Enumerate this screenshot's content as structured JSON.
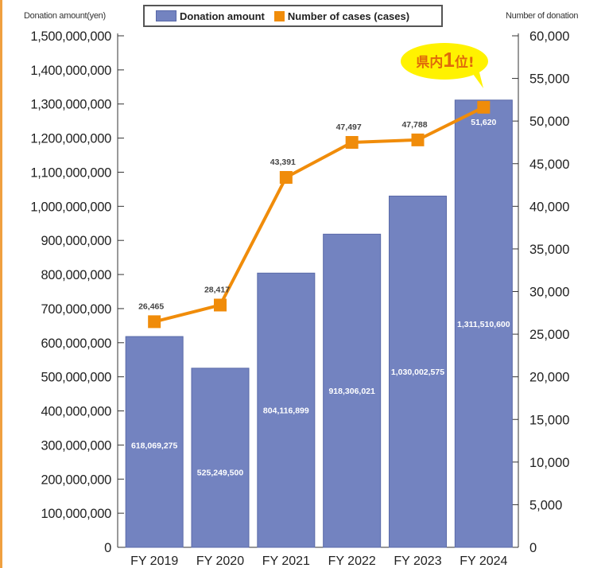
{
  "left_axis_title": "Donation amount(yen)",
  "right_axis_title": "Number of donation",
  "legend": {
    "bar_label": "Donation amount",
    "line_label": "Number of cases (cases)"
  },
  "callout": {
    "prefix": "県内",
    "number": "1",
    "suffix": "位!"
  },
  "colors": {
    "bar": "#7383c0",
    "bar_edge": "#5a6aa8",
    "line": "#f08c0a",
    "callout_bg": "#fff200",
    "callout_text": "#e06a0a"
  },
  "chart_data": {
    "type": "bar",
    "categories": [
      "FY 2019",
      "FY 2020",
      "FY 2021",
      "FY 2022",
      "FY 2023",
      "FY 2024"
    ],
    "series": [
      {
        "name": "Donation amount",
        "type": "bar",
        "axis": "left",
        "values": [
          618069275,
          525249500,
          804116899,
          918306021,
          1030002575,
          1311510600
        ],
        "labels": [
          "618,069,275",
          "525,249,500",
          "804,116,899",
          "918,306,021",
          "1,030,002,575",
          "1,311,510,600"
        ]
      },
      {
        "name": "Number of cases (cases)",
        "type": "line",
        "axis": "right",
        "values": [
          26465,
          28417,
          43391,
          47497,
          47788,
          51620
        ],
        "labels": [
          "26,465",
          "28,417",
          "43,391",
          "47,497",
          "47,788",
          "51,620"
        ]
      }
    ],
    "left_axis": {
      "min": 0,
      "max": 1500000000,
      "ticks": [
        0,
        100000000,
        200000000,
        300000000,
        400000000,
        500000000,
        600000000,
        700000000,
        800000000,
        900000000,
        1000000000,
        1100000000,
        1200000000,
        1300000000,
        1400000000,
        1500000000
      ],
      "tick_labels": [
        "0",
        "100,000,000",
        "200,000,000",
        "300,000,000",
        "400,000,000",
        "500,000,000",
        "600,000,000",
        "700,000,000",
        "800,000,000",
        "900,000,000",
        "1,000,000,000",
        "1,100,000,000",
        "1,200,000,000",
        "1,300,000,000",
        "1,400,000,000",
        "1,500,000,000"
      ]
    },
    "right_axis": {
      "min": 0,
      "max": 60000,
      "ticks": [
        0,
        5000,
        10000,
        15000,
        20000,
        25000,
        30000,
        35000,
        40000,
        45000,
        50000,
        55000,
        60000
      ],
      "tick_labels": [
        "0",
        "5,000",
        "10,000",
        "15,000",
        "20,000",
        "25,000",
        "30,000",
        "35,000",
        "40,000",
        "45,000",
        "50,000",
        "55,000",
        "60,000"
      ]
    },
    "grid": false,
    "legend_position": "top"
  }
}
